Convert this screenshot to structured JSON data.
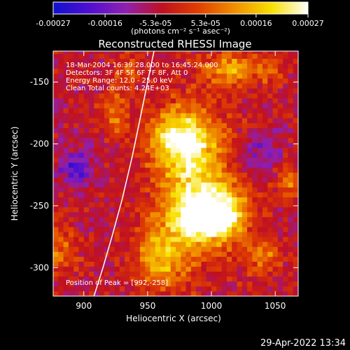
{
  "colorbar": {
    "ticks": [
      "-0.00027",
      "-0.00016",
      "-5.3e-05",
      "5.3e-05",
      "0.00016",
      "0.00027"
    ],
    "tick_values": [
      -0.00027,
      -0.00016,
      -5.3e-05,
      5.3e-05,
      0.00016,
      0.00027
    ],
    "range": [
      -0.00027,
      0.00027
    ],
    "unit_label": "(photons cm⁻² s⁻¹ asec⁻²)",
    "colors": [
      "#1010d0",
      "#5010d0",
      "#9020b0",
      "#c01020",
      "#e04000",
      "#f09000",
      "#f8e000",
      "#ffffff"
    ]
  },
  "chart_data": {
    "type": "heatmap",
    "title": "Reconstructed RHESSI Image",
    "xlabel": "Heliocentric X (arcsec)",
    "ylabel": "Heliocentric Y (arcsec)",
    "xlim": [
      876,
      1068
    ],
    "ylim": [
      -323,
      -125
    ],
    "x_ticks": [
      900,
      950,
      1000,
      1050
    ],
    "y_ticks": [
      -150,
      -200,
      -250,
      -300
    ],
    "annotations": [
      "18-Mar-2004 16:39:28.000 to 16:45:24.000",
      "Detectors: 3F 4F 5F 6F 7F 8F, Att 0",
      "Energy Range: 12.0 - 25.0 keV",
      "Clean    Total counts: 4.24E+03"
    ],
    "peak_label": "Position of Peak = [992,-258]",
    "peak": [
      992,
      -258
    ],
    "limb_curve": {
      "x": [
        908,
        915,
        922,
        930,
        938,
        944,
        950,
        955
      ],
      "y": [
        -323,
        -300,
        -275,
        -245,
        -210,
        -180,
        -150,
        -125
      ]
    },
    "grid_step": 4,
    "sources": [
      {
        "x": 985,
        "y": -230,
        "sx": 20,
        "sy": 40,
        "a": 0.00022
      },
      {
        "x": 995,
        "y": -258,
        "sx": 15,
        "sy": 14,
        "a": 0.00027
      },
      {
        "x": 975,
        "y": -195,
        "sx": 16,
        "sy": 14,
        "a": 0.00022
      },
      {
        "x": 960,
        "y": -290,
        "sx": 14,
        "sy": 18,
        "a": 0.00018
      },
      {
        "x": 1015,
        "y": -255,
        "sx": 12,
        "sy": 15,
        "a": 0.00016
      },
      {
        "x": 1015,
        "y": -140,
        "sx": 14,
        "sy": 10,
        "a": 0.00018
      },
      {
        "x": 925,
        "y": -175,
        "sx": 8,
        "sy": 14,
        "a": 0.00012
      },
      {
        "x": 1040,
        "y": -290,
        "sx": 10,
        "sy": 10,
        "a": 0.00013
      },
      {
        "x": 1060,
        "y": -230,
        "sx": 8,
        "sy": 10,
        "a": 0.00012
      },
      {
        "x": 880,
        "y": -285,
        "sx": 10,
        "sy": 14,
        "a": 0.00011
      },
      {
        "x": 1045,
        "y": -140,
        "sx": 8,
        "sy": 8,
        "a": 0.0001
      },
      {
        "x": 935,
        "y": -140,
        "sx": 10,
        "sy": 8,
        "a": 9e-05
      },
      {
        "x": 895,
        "y": -220,
        "sx": 10,
        "sy": 10,
        "a": -0.00016
      },
      {
        "x": 1040,
        "y": -210,
        "sx": 10,
        "sy": 12,
        "a": -0.0001
      }
    ]
  },
  "footer": {
    "timestamp": "29-Apr-2022 13:34"
  }
}
